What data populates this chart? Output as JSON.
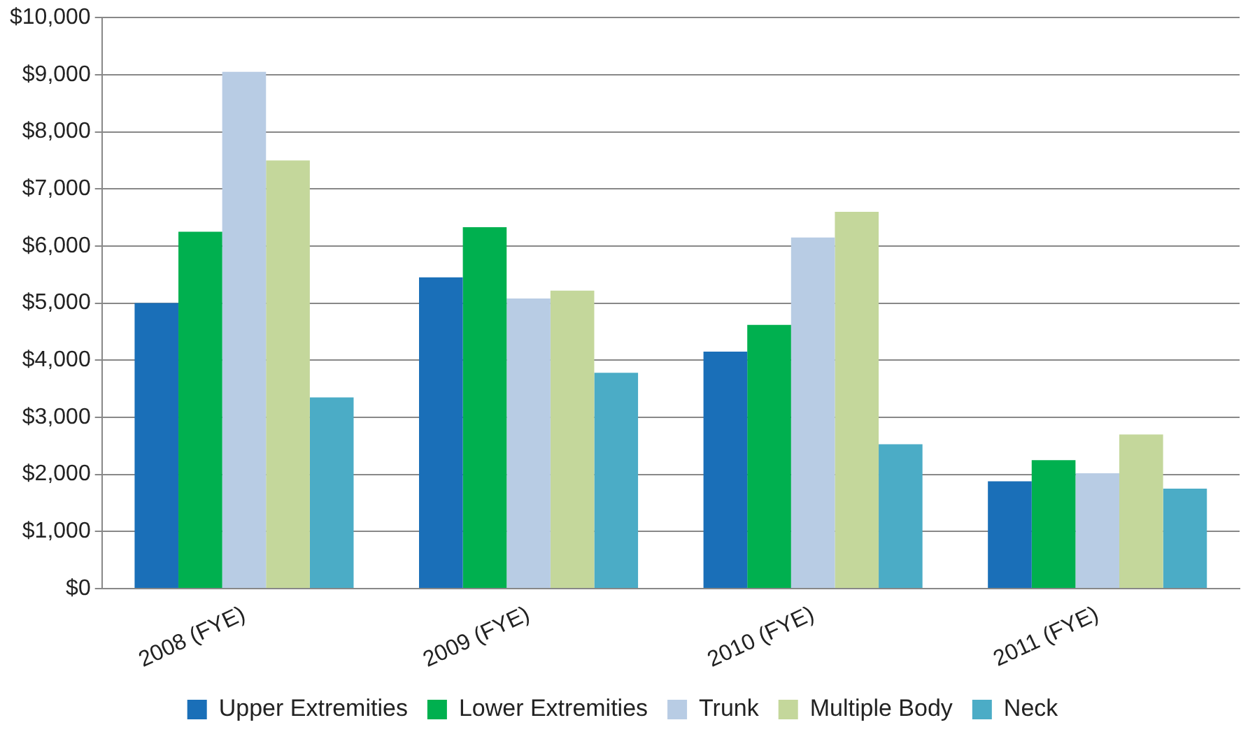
{
  "chart_data": {
    "type": "bar",
    "categories": [
      "2008 (FYE)",
      "2009 (FYE)",
      "2010 (FYE)",
      "2011 (FYE)"
    ],
    "series": [
      {
        "name": "Upper Extremities",
        "color": "#1a6fb8",
        "values": [
          5000,
          5450,
          4150,
          1880
        ]
      },
      {
        "name": "Lower Extremities",
        "color": "#00b04f",
        "values": [
          6250,
          6330,
          4620,
          2250
        ]
      },
      {
        "name": "Trunk",
        "color": "#b8cce4",
        "values": [
          9050,
          5080,
          6150,
          2020
        ]
      },
      {
        "name": "Multiple Body",
        "color": "#c4d79b",
        "values": [
          7500,
          5220,
          6600,
          2700
        ]
      },
      {
        "name": "Neck",
        "color": "#4bacc6",
        "values": [
          3350,
          3780,
          2530,
          1750
        ]
      }
    ],
    "ylim": [
      0,
      10000
    ],
    "yticks": [
      {
        "value": 0,
        "label": "$0"
      },
      {
        "value": 1000,
        "label": "$1,000"
      },
      {
        "value": 2000,
        "label": "$2,000"
      },
      {
        "value": 3000,
        "label": "$3,000"
      },
      {
        "value": 4000,
        "label": "$4,000"
      },
      {
        "value": 5000,
        "label": "$5,000"
      },
      {
        "value": 6000,
        "label": "$6,000"
      },
      {
        "value": 7000,
        "label": "$7,000"
      },
      {
        "value": 8000,
        "label": "$8,000"
      },
      {
        "value": 9000,
        "label": "$9,000"
      },
      {
        "value": 10000,
        "label": "$10,000"
      }
    ],
    "grid": "y",
    "legend": "bottom"
  }
}
